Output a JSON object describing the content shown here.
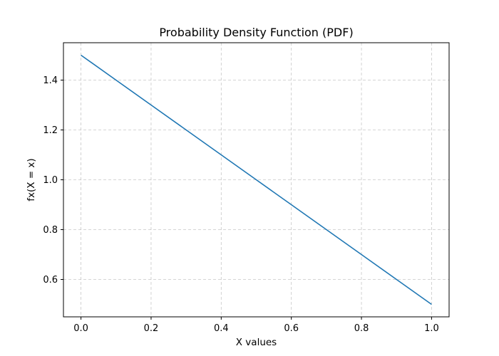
{
  "chart_data": {
    "type": "line",
    "title": "Probability Density Function (PDF)",
    "xlabel": "X values",
    "ylabel": "fx(X = x)",
    "xlim": [
      -0.05,
      1.05
    ],
    "ylim": [
      0.45,
      1.55
    ],
    "x_ticks": [
      0.0,
      0.2,
      0.4,
      0.6,
      0.8,
      1.0
    ],
    "x_tick_labels": [
      "0.0",
      "0.2",
      "0.4",
      "0.6",
      "0.8",
      "1.0"
    ],
    "y_ticks": [
      0.6,
      0.8,
      1.0,
      1.2,
      1.4
    ],
    "y_tick_labels": [
      "0.6",
      "0.8",
      "1.0",
      "1.2",
      "1.4"
    ],
    "grid": true,
    "series": [
      {
        "color": "#1f77b4",
        "x": [
          0.0,
          0.1,
          0.2,
          0.3,
          0.4,
          0.5,
          0.6,
          0.7,
          0.8,
          0.9,
          1.0
        ],
        "y": [
          1.5,
          1.4,
          1.3,
          1.2,
          1.1,
          1.0,
          0.9,
          0.8,
          0.7,
          0.6,
          0.5
        ]
      }
    ]
  }
}
